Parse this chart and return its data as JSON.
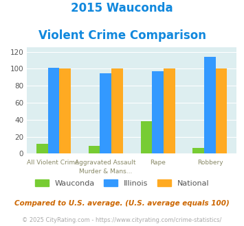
{
  "title_line1": "2015 Wauconda",
  "title_line2": "Violent Crime Comparison",
  "cat_labels_line1": [
    "",
    "Aggravated Assault",
    "",
    ""
  ],
  "cat_labels_line2": [
    "All Violent Crime",
    "Murder & Mans...",
    "Rape",
    "Robbery"
  ],
  "wauconda": [
    12,
    9,
    38,
    7
  ],
  "illinois": [
    101,
    95,
    97,
    114
  ],
  "national": [
    100,
    100,
    100,
    100
  ],
  "color_wauconda": "#77cc33",
  "color_illinois": "#3399ff",
  "color_national": "#ffaa22",
  "ylim": [
    0,
    125
  ],
  "yticks": [
    0,
    20,
    40,
    60,
    80,
    100,
    120
  ],
  "background_color": "#ddeef0",
  "footer_text": "Compared to U.S. average. (U.S. average equals 100)",
  "copyright_text": "© 2025 CityRating.com - https://www.cityrating.com/crime-statistics/",
  "legend_labels": [
    "Wauconda",
    "Illinois",
    "National"
  ]
}
